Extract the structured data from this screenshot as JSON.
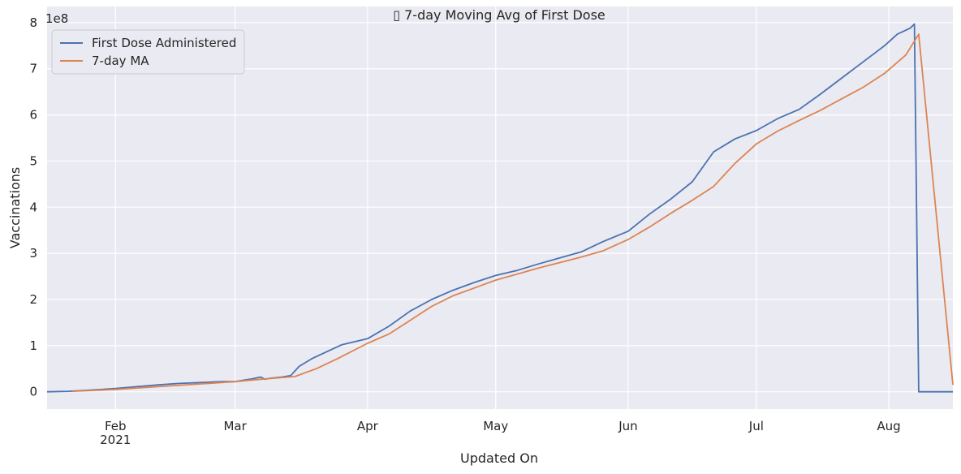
{
  "chart_data": {
    "type": "line",
    "title": "▯ 7-day Moving Avg of First Dose",
    "xlabel": "Updated On",
    "ylabel": "Vaccinations",
    "y_offset_label": "1e8",
    "y_scale": 100000000,
    "xlim": [
      "2021-01-16",
      "2021-08-16"
    ],
    "ylim": [
      -37500000,
      835000000
    ],
    "yticks": [
      0,
      100000000,
      200000000,
      300000000,
      400000000,
      500000000,
      600000000,
      700000000,
      800000000
    ],
    "ytick_labels": [
      "0",
      "1",
      "2",
      "3",
      "4",
      "5",
      "6",
      "7",
      "8"
    ],
    "xticks": [
      "2021-02-01",
      "2021-03-01",
      "2021-04-01",
      "2021-05-01",
      "2021-06-01",
      "2021-07-01",
      "2021-08-01"
    ],
    "xtick_labels": [
      "Feb",
      "Mar",
      "Apr",
      "May",
      "Jun",
      "Jul",
      "Aug"
    ],
    "xtick_sublabel": "2021",
    "grid": true,
    "legend_position": "top-left",
    "series": [
      {
        "name": "First Dose Administered",
        "color": "#4c72b0",
        "x": [
          "2021-01-16",
          "2021-01-21",
          "2021-01-26",
          "2021-02-01",
          "2021-02-06",
          "2021-02-11",
          "2021-02-16",
          "2021-02-21",
          "2021-02-26",
          "2021-03-01",
          "2021-03-05",
          "2021-03-07",
          "2021-03-08",
          "2021-03-09",
          "2021-03-12",
          "2021-03-14",
          "2021-03-16",
          "2021-03-19",
          "2021-03-22",
          "2021-03-26",
          "2021-04-01",
          "2021-04-06",
          "2021-04-11",
          "2021-04-16",
          "2021-04-21",
          "2021-04-26",
          "2021-05-01",
          "2021-05-06",
          "2021-05-11",
          "2021-05-16",
          "2021-05-21",
          "2021-05-26",
          "2021-06-01",
          "2021-06-06",
          "2021-06-11",
          "2021-06-16",
          "2021-06-21",
          "2021-06-26",
          "2021-07-01",
          "2021-07-06",
          "2021-07-11",
          "2021-07-16",
          "2021-07-21",
          "2021-07-26",
          "2021-07-31",
          "2021-08-03",
          "2021-08-06",
          "2021-08-07",
          "2021-08-08",
          "2021-08-09",
          "2021-08-16"
        ],
        "values": [
          0,
          1000000,
          3500000,
          7000000,
          11000000,
          15000000,
          18000000,
          20000000,
          22000000,
          22000000,
          28000000,
          32000000,
          27000000,
          29000000,
          32000000,
          35000000,
          55000000,
          72000000,
          85000000,
          102000000,
          115000000,
          142000000,
          175000000,
          200000000,
          220000000,
          237000000,
          252000000,
          263000000,
          277000000,
          290000000,
          303000000,
          325000000,
          348000000,
          385000000,
          418000000,
          455000000,
          520000000,
          548000000,
          566000000,
          592000000,
          612000000,
          645000000,
          680000000,
          715000000,
          750000000,
          775000000,
          788000000,
          797000000,
          0,
          0,
          0
        ]
      },
      {
        "name": "7-day MA",
        "color": "#dd8452",
        "x": [
          "2021-01-22",
          "2021-02-01",
          "2021-02-11",
          "2021-02-21",
          "2021-03-01",
          "2021-03-08",
          "2021-03-15",
          "2021-03-20",
          "2021-03-25",
          "2021-04-01",
          "2021-04-06",
          "2021-04-11",
          "2021-04-16",
          "2021-04-21",
          "2021-04-26",
          "2021-05-01",
          "2021-05-06",
          "2021-05-11",
          "2021-05-16",
          "2021-05-21",
          "2021-05-26",
          "2021-06-01",
          "2021-06-06",
          "2021-06-11",
          "2021-06-16",
          "2021-06-21",
          "2021-06-26",
          "2021-07-01",
          "2021-07-06",
          "2021-07-11",
          "2021-07-16",
          "2021-07-21",
          "2021-07-26",
          "2021-07-31",
          "2021-08-05",
          "2021-08-08",
          "2021-08-16"
        ],
        "values": [
          1000000,
          5000000,
          11000000,
          17000000,
          22000000,
          28000000,
          33000000,
          50000000,
          72000000,
          105000000,
          125000000,
          155000000,
          185000000,
          208000000,
          225000000,
          242000000,
          255000000,
          268000000,
          280000000,
          292000000,
          305000000,
          330000000,
          357000000,
          387000000,
          415000000,
          445000000,
          495000000,
          537000000,
          565000000,
          588000000,
          610000000,
          635000000,
          660000000,
          690000000,
          730000000,
          775000000,
          15000000
        ]
      }
    ]
  }
}
